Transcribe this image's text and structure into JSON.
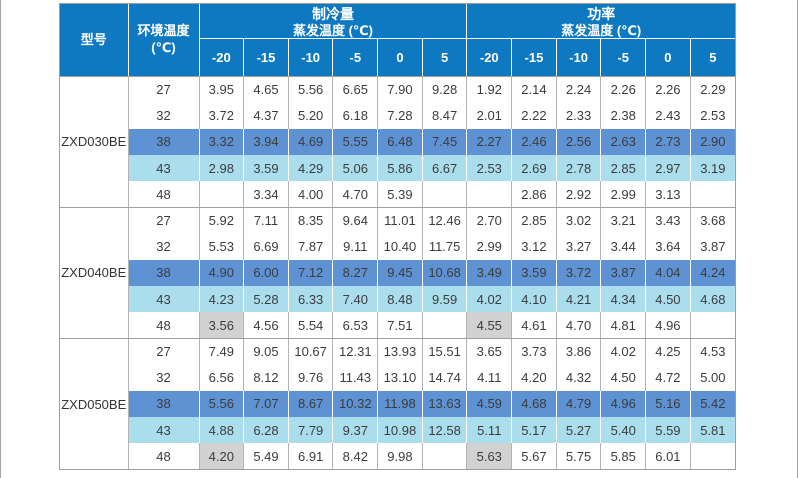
{
  "colors": {
    "header_blue": "#0e79c1",
    "header_text": "#ffffff",
    "row_blue": "#5e92d3",
    "row_cyan": "#abdeed",
    "cell_gray": "#d2d2d2",
    "border_outer": "#9e9e9e",
    "border_inner": "#b3b3b3",
    "text_dark": "#3c3c3c",
    "edge_line": "#a6a6a6"
  },
  "table": {
    "header": {
      "model_label": "型号",
      "ambient_label_line1": "环境温度",
      "ambient_label_line2": "(℃)",
      "sections": [
        {
          "title": "制冷量",
          "subtitle": "蒸发温度 (℃)"
        },
        {
          "title": "功率",
          "subtitle": "蒸发温度 (℃)"
        }
      ],
      "evap_temps": [
        "-20",
        "-15",
        "-10",
        "-5",
        "0",
        "5"
      ]
    },
    "groups": [
      {
        "model": "ZXD030BE",
        "rows": [
          {
            "ambient": "27",
            "highlight": "none",
            "gray_first": false,
            "cooling": [
              "3.95",
              "4.65",
              "5.56",
              "6.65",
              "7.90",
              "9.28"
            ],
            "power": [
              "1.92",
              "2.14",
              "2.24",
              "2.26",
              "2.26",
              "2.29"
            ]
          },
          {
            "ambient": "32",
            "highlight": "none",
            "gray_first": false,
            "cooling": [
              "3.72",
              "4.37",
              "5.20",
              "6.18",
              "7.28",
              "8.47"
            ],
            "power": [
              "2.01",
              "2.22",
              "2.33",
              "2.38",
              "2.43",
              "2.53"
            ]
          },
          {
            "ambient": "38",
            "highlight": "blue",
            "gray_first": false,
            "cooling": [
              "3.32",
              "3.94",
              "4.69",
              "5.55",
              "6.48",
              "7.45"
            ],
            "power": [
              "2.27",
              "2.46",
              "2.56",
              "2.63",
              "2.73",
              "2.90"
            ]
          },
          {
            "ambient": "43",
            "highlight": "cyan",
            "gray_first": false,
            "cooling": [
              "2.98",
              "3.59",
              "4.29",
              "5.06",
              "5.86",
              "6.67"
            ],
            "power": [
              "2.53",
              "2.69",
              "2.78",
              "2.85",
              "2.97",
              "3.19"
            ]
          },
          {
            "ambient": "48",
            "highlight": "none",
            "gray_first": false,
            "cooling": [
              "",
              "3.34",
              "4.00",
              "4.70",
              "5.39",
              ""
            ],
            "power": [
              "",
              "2.86",
              "2.92",
              "2.99",
              "3.13",
              ""
            ]
          }
        ]
      },
      {
        "model": "ZXD040BE",
        "rows": [
          {
            "ambient": "27",
            "highlight": "none",
            "gray_first": false,
            "cooling": [
              "5.92",
              "7.11",
              "8.35",
              "9.64",
              "11.01",
              "12.46"
            ],
            "power": [
              "2.70",
              "2.85",
              "3.02",
              "3.21",
              "3.43",
              "3.68"
            ]
          },
          {
            "ambient": "32",
            "highlight": "none",
            "gray_first": false,
            "cooling": [
              "5.53",
              "6.69",
              "7.87",
              "9.11",
              "10.40",
              "11.75"
            ],
            "power": [
              "2.99",
              "3.12",
              "3.27",
              "3.44",
              "3.64",
              "3.87"
            ]
          },
          {
            "ambient": "38",
            "highlight": "blue",
            "gray_first": false,
            "cooling": [
              "4.90",
              "6.00",
              "7.12",
              "8.27",
              "9.45",
              "10.68"
            ],
            "power": [
              "3.49",
              "3.59",
              "3.72",
              "3.87",
              "4.04",
              "4.24"
            ]
          },
          {
            "ambient": "43",
            "highlight": "cyan",
            "gray_first": false,
            "cooling": [
              "4.23",
              "5.28",
              "6.33",
              "7.40",
              "8.48",
              "9.59"
            ],
            "power": [
              "4.02",
              "4.10",
              "4.21",
              "4.34",
              "4.50",
              "4.68"
            ]
          },
          {
            "ambient": "48",
            "highlight": "none",
            "gray_first": true,
            "cooling": [
              "3.56",
              "4.56",
              "5.54",
              "6.53",
              "7.51",
              ""
            ],
            "power": [
              "4.55",
              "4.61",
              "4.70",
              "4.81",
              "4.96",
              ""
            ]
          }
        ]
      },
      {
        "model": "ZXD050BE",
        "rows": [
          {
            "ambient": "27",
            "highlight": "none",
            "gray_first": false,
            "cooling": [
              "7.49",
              "9.05",
              "10.67",
              "12.31",
              "13.93",
              "15.51"
            ],
            "power": [
              "3.65",
              "3.73",
              "3.86",
              "4.02",
              "4.25",
              "4.53"
            ]
          },
          {
            "ambient": "32",
            "highlight": "none",
            "gray_first": false,
            "cooling": [
              "6.56",
              "8.12",
              "9.76",
              "11.43",
              "13.10",
              "14.74"
            ],
            "power": [
              "4.11",
              "4.20",
              "4.32",
              "4.50",
              "4.72",
              "5.00"
            ]
          },
          {
            "ambient": "38",
            "highlight": "blue",
            "gray_first": false,
            "cooling": [
              "5.56",
              "7.07",
              "8.67",
              "10.32",
              "11.98",
              "13.63"
            ],
            "power": [
              "4.59",
              "4.68",
              "4.79",
              "4.96",
              "5.16",
              "5.42"
            ]
          },
          {
            "ambient": "43",
            "highlight": "cyan",
            "gray_first": false,
            "cooling": [
              "4.88",
              "6.28",
              "7.79",
              "9.37",
              "10.98",
              "12.58"
            ],
            "power": [
              "5.11",
              "5.17",
              "5.27",
              "5.40",
              "5.59",
              "5.81"
            ]
          },
          {
            "ambient": "48",
            "highlight": "none",
            "gray_first": true,
            "cooling": [
              "4.20",
              "5.49",
              "6.91",
              "8.42",
              "9.98",
              ""
            ],
            "power": [
              "5.63",
              "5.67",
              "5.75",
              "5.85",
              "6.01",
              ""
            ]
          }
        ]
      }
    ]
  }
}
